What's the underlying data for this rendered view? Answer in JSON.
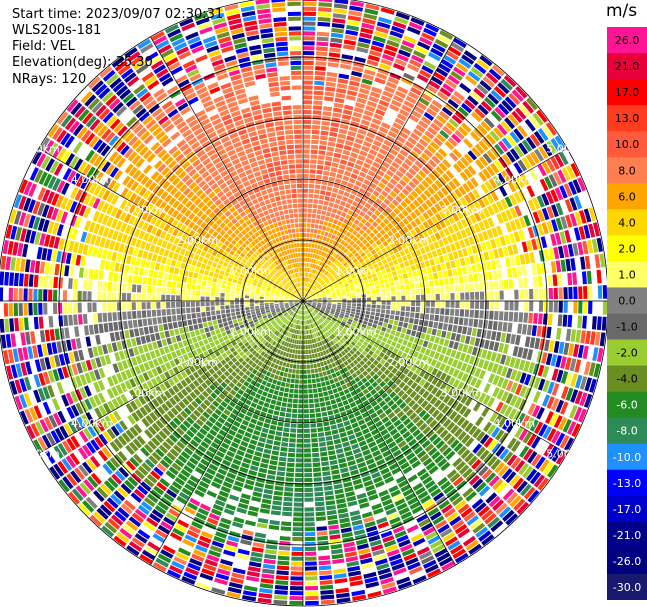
{
  "header": {
    "start_time": "Start time: 2023/09/07 02:30:31",
    "station": "WLS200s-181",
    "field": "Field: VEL",
    "elevation": "Elevation(deg): 35.30",
    "nrays": "NRays: 120"
  },
  "chart_data": {
    "type": "heatmap",
    "subtype": "radar-ppi-polar",
    "field": "VEL",
    "units": "m/s",
    "nrays": 120,
    "range_rings_km": [
      1.0,
      2.0,
      3.0,
      4.0,
      5.0
    ],
    "ring_labels": [
      "1.00km",
      "2.00km",
      "3.00km",
      "4.00km",
      "5.00km"
    ],
    "max_range_km": 5.0,
    "colorbar": {
      "title": "m/s",
      "ticks": [
        "26.0",
        "21.0",
        "17.0",
        "13.0",
        "10.0",
        "8.0",
        "6.0",
        "4.0",
        "2.0",
        "1.0",
        "0.0",
        "-1.0",
        "-2.0",
        "-4.0",
        "-6.0",
        "-8.0",
        "-10.0",
        "-13.0",
        "-17.0",
        "-21.0",
        "-26.0",
        "-30.0"
      ],
      "colors": [
        "#ff1493",
        "#e8003a",
        "#ff0000",
        "#ff3c1e",
        "#ff5a3c",
        "#ff7f50",
        "#ffa500",
        "#ffd700",
        "#ffff00",
        "#ffff66",
        "#808080",
        "#696969",
        "#9acd32",
        "#6b8e23",
        "#228b22",
        "#2e8b57",
        "#1e90ff",
        "#0000ff",
        "#0000cd",
        "#00008b",
        "#000080",
        "#191970"
      ]
    },
    "velocity_pattern": {
      "north_sector_kinematics": "positive (receding)",
      "south_sector_kinematics": "negative (approaching)",
      "peak_positive_ms": 8.0,
      "peak_negative_ms": -8.0,
      "noisy_beyond_km": 4.0
    }
  }
}
